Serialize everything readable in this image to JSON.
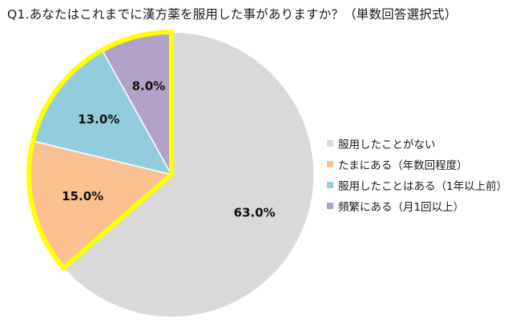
{
  "chart_data": {
    "type": "pie",
    "title": "Q1.あなたはこれまでに漢方薬を服用した事がありますか？（単数回答選択式）",
    "categories": [
      "服用したことがない",
      "たまにある（年数回程度）",
      "服用したことはある（1年以上前）",
      "頻繁にある（月1回以上）"
    ],
    "values": [
      63.0,
      15.0,
      13.0,
      8.0
    ],
    "data_labels": [
      "63.0%",
      "15.0%",
      "13.0%",
      "8.0%"
    ],
    "colors": [
      "#d9d9d9",
      "#fac090",
      "#93cddd",
      "#b3a2c7"
    ],
    "highlight_outline_color": "#ffff00",
    "highlighted_slices": [
      1,
      2,
      3
    ],
    "start_angle_deg": 0,
    "direction": "clockwise",
    "legend_position": "right"
  }
}
